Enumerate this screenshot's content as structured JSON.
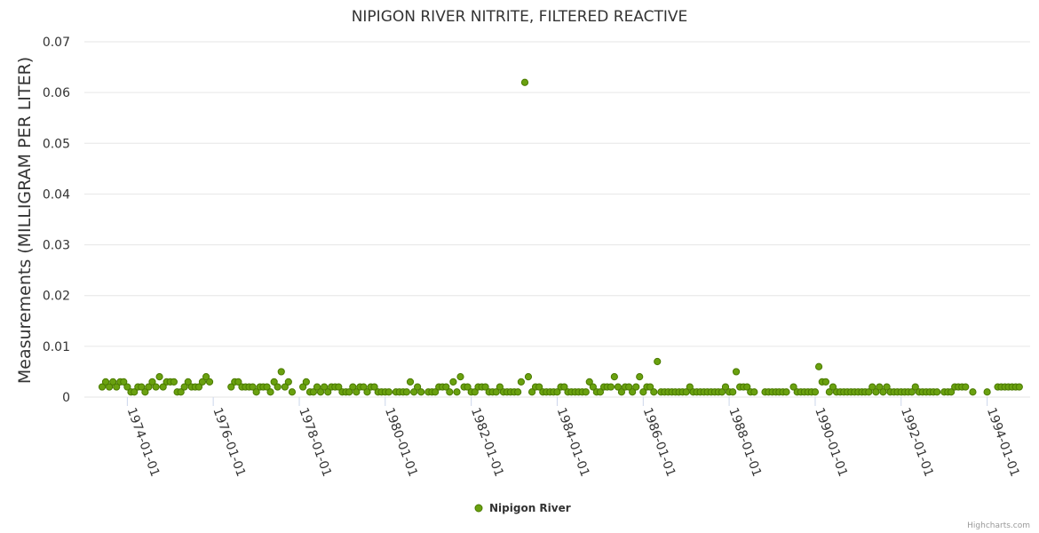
{
  "chart_data": {
    "type": "scatter",
    "title": "NIPIGON RIVER NITRITE, FILTERED REACTIVE",
    "ylabel": "Measurements (MILLIGRAM PER LITER)",
    "xlabel": "",
    "ylim": [
      0,
      0.07
    ],
    "yticks": [
      0,
      0.01,
      0.02,
      0.03,
      0.04,
      0.05,
      0.06,
      0.07
    ],
    "ytick_labels": [
      "0",
      "0.01",
      "0.02",
      "0.03",
      "0.04",
      "0.05",
      "0.06",
      "0.07"
    ],
    "xlim": [
      "1973-01-01",
      "1995-01-01"
    ],
    "xticks": [
      "1974-01-01",
      "1976-01-01",
      "1978-01-01",
      "1980-01-01",
      "1982-01-01",
      "1984-01-01",
      "1986-01-01",
      "1988-01-01",
      "1990-01-01",
      "1992-01-01",
      "1994-01-01"
    ],
    "grid": true,
    "legend_position": "bottom-center",
    "color": "#6aa10f",
    "marker_stroke": "#4a7a00",
    "series": [
      {
        "name": "Nipigon River",
        "points": [
          [
            "1973-06-01",
            0.002
          ],
          [
            "1973-07-01",
            0.003
          ],
          [
            "1973-08-01",
            0.002
          ],
          [
            "1973-09-01",
            0.003
          ],
          [
            "1973-10-01",
            0.002
          ],
          [
            "1973-11-01",
            0.003
          ],
          [
            "1973-12-01",
            0.003
          ],
          [
            "1974-01-01",
            0.002
          ],
          [
            "1974-02-01",
            0.001
          ],
          [
            "1974-03-01",
            0.001
          ],
          [
            "1974-04-01",
            0.002
          ],
          [
            "1974-05-01",
            0.002
          ],
          [
            "1974-06-01",
            0.001
          ],
          [
            "1974-07-01",
            0.002
          ],
          [
            "1974-08-01",
            0.003
          ],
          [
            "1974-09-01",
            0.002
          ],
          [
            "1974-10-01",
            0.004
          ],
          [
            "1974-11-01",
            0.002
          ],
          [
            "1974-12-01",
            0.003
          ],
          [
            "1975-01-01",
            0.003
          ],
          [
            "1975-02-01",
            0.003
          ],
          [
            "1975-03-01",
            0.001
          ],
          [
            "1975-04-01",
            0.001
          ],
          [
            "1975-05-01",
            0.002
          ],
          [
            "1975-06-01",
            0.003
          ],
          [
            "1975-07-01",
            0.002
          ],
          [
            "1975-08-01",
            0.002
          ],
          [
            "1975-09-01",
            0.002
          ],
          [
            "1975-10-01",
            0.003
          ],
          [
            "1975-11-01",
            0.004
          ],
          [
            "1975-12-01",
            0.003
          ],
          [
            "1976-06-01",
            0.002
          ],
          [
            "1976-07-01",
            0.003
          ],
          [
            "1976-08-01",
            0.003
          ],
          [
            "1976-09-01",
            0.002
          ],
          [
            "1976-10-01",
            0.002
          ],
          [
            "1976-11-01",
            0.002
          ],
          [
            "1976-12-01",
            0.002
          ],
          [
            "1977-01-01",
            0.001
          ],
          [
            "1977-02-01",
            0.002
          ],
          [
            "1977-03-01",
            0.002
          ],
          [
            "1977-04-01",
            0.002
          ],
          [
            "1977-05-01",
            0.001
          ],
          [
            "1977-06-01",
            0.003
          ],
          [
            "1977-07-01",
            0.002
          ],
          [
            "1977-08-01",
            0.005
          ],
          [
            "1977-09-01",
            0.002
          ],
          [
            "1977-10-01",
            0.003
          ],
          [
            "1977-11-01",
            0.001
          ],
          [
            "1978-02-01",
            0.002
          ],
          [
            "1978-03-01",
            0.003
          ],
          [
            "1978-04-01",
            0.001
          ],
          [
            "1978-05-01",
            0.001
          ],
          [
            "1978-06-01",
            0.002
          ],
          [
            "1978-07-01",
            0.001
          ],
          [
            "1978-08-01",
            0.002
          ],
          [
            "1978-09-01",
            0.001
          ],
          [
            "1978-10-01",
            0.002
          ],
          [
            "1978-11-01",
            0.002
          ],
          [
            "1978-12-01",
            0.002
          ],
          [
            "1979-01-01",
            0.001
          ],
          [
            "1979-02-01",
            0.001
          ],
          [
            "1979-03-01",
            0.001
          ],
          [
            "1979-04-01",
            0.002
          ],
          [
            "1979-05-01",
            0.001
          ],
          [
            "1979-06-01",
            0.002
          ],
          [
            "1979-07-01",
            0.002
          ],
          [
            "1979-08-01",
            0.001
          ],
          [
            "1979-09-01",
            0.002
          ],
          [
            "1979-10-01",
            0.002
          ],
          [
            "1979-11-01",
            0.001
          ],
          [
            "1979-12-01",
            0.001
          ],
          [
            "1980-01-01",
            0.001
          ],
          [
            "1980-02-01",
            0.001
          ],
          [
            "1980-04-01",
            0.001
          ],
          [
            "1980-05-01",
            0.001
          ],
          [
            "1980-06-01",
            0.001
          ],
          [
            "1980-07-01",
            0.001
          ],
          [
            "1980-08-01",
            0.003
          ],
          [
            "1980-09-01",
            0.001
          ],
          [
            "1980-10-01",
            0.002
          ],
          [
            "1980-11-01",
            0.001
          ],
          [
            "1981-01-01",
            0.001
          ],
          [
            "1981-02-01",
            0.001
          ],
          [
            "1981-03-01",
            0.001
          ],
          [
            "1981-04-01",
            0.002
          ],
          [
            "1981-05-01",
            0.002
          ],
          [
            "1981-06-01",
            0.002
          ],
          [
            "1981-07-01",
            0.001
          ],
          [
            "1981-08-01",
            0.003
          ],
          [
            "1981-09-01",
            0.001
          ],
          [
            "1981-10-01",
            0.004
          ],
          [
            "1981-11-01",
            0.002
          ],
          [
            "1981-12-01",
            0.002
          ],
          [
            "1982-01-01",
            0.001
          ],
          [
            "1982-02-01",
            0.001
          ],
          [
            "1982-03-01",
            0.002
          ],
          [
            "1982-04-01",
            0.002
          ],
          [
            "1982-05-01",
            0.002
          ],
          [
            "1982-06-01",
            0.001
          ],
          [
            "1982-07-01",
            0.001
          ],
          [
            "1982-08-01",
            0.001
          ],
          [
            "1982-09-01",
            0.002
          ],
          [
            "1982-10-01",
            0.001
          ],
          [
            "1982-11-01",
            0.001
          ],
          [
            "1982-12-01",
            0.001
          ],
          [
            "1983-01-01",
            0.001
          ],
          [
            "1983-02-01",
            0.001
          ],
          [
            "1983-03-01",
            0.003
          ],
          [
            "1983-04-01",
            0.062
          ],
          [
            "1983-05-01",
            0.004
          ],
          [
            "1983-06-01",
            0.001
          ],
          [
            "1983-07-01",
            0.002
          ],
          [
            "1983-08-01",
            0.002
          ],
          [
            "1983-09-01",
            0.001
          ],
          [
            "1983-10-01",
            0.001
          ],
          [
            "1983-11-01",
            0.001
          ],
          [
            "1983-12-01",
            0.001
          ],
          [
            "1984-01-01",
            0.001
          ],
          [
            "1984-02-01",
            0.002
          ],
          [
            "1984-03-01",
            0.002
          ],
          [
            "1984-04-01",
            0.001
          ],
          [
            "1984-05-01",
            0.001
          ],
          [
            "1984-06-01",
            0.001
          ],
          [
            "1984-07-01",
            0.001
          ],
          [
            "1984-08-01",
            0.001
          ],
          [
            "1984-09-01",
            0.001
          ],
          [
            "1984-10-01",
            0.003
          ],
          [
            "1984-11-01",
            0.002
          ],
          [
            "1984-12-01",
            0.001
          ],
          [
            "1985-01-01",
            0.001
          ],
          [
            "1985-02-01",
            0.002
          ],
          [
            "1985-03-01",
            0.002
          ],
          [
            "1985-04-01",
            0.002
          ],
          [
            "1985-05-01",
            0.004
          ],
          [
            "1985-06-01",
            0.002
          ],
          [
            "1985-07-01",
            0.001
          ],
          [
            "1985-08-01",
            0.002
          ],
          [
            "1985-09-01",
            0.002
          ],
          [
            "1985-10-01",
            0.001
          ],
          [
            "1985-11-01",
            0.002
          ],
          [
            "1985-12-01",
            0.004
          ],
          [
            "1986-01-01",
            0.001
          ],
          [
            "1986-02-01",
            0.002
          ],
          [
            "1986-03-01",
            0.002
          ],
          [
            "1986-04-01",
            0.001
          ],
          [
            "1986-05-01",
            0.007
          ],
          [
            "1986-06-01",
            0.001
          ],
          [
            "1986-07-01",
            0.001
          ],
          [
            "1986-08-01",
            0.001
          ],
          [
            "1986-09-01",
            0.001
          ],
          [
            "1986-10-01",
            0.001
          ],
          [
            "1986-11-01",
            0.001
          ],
          [
            "1986-12-01",
            0.001
          ],
          [
            "1987-01-01",
            0.001
          ],
          [
            "1987-02-01",
            0.002
          ],
          [
            "1987-03-01",
            0.001
          ],
          [
            "1987-04-01",
            0.001
          ],
          [
            "1987-05-01",
            0.001
          ],
          [
            "1987-06-01",
            0.001
          ],
          [
            "1987-07-01",
            0.001
          ],
          [
            "1987-08-01",
            0.001
          ],
          [
            "1987-09-01",
            0.001
          ],
          [
            "1987-10-01",
            0.001
          ],
          [
            "1987-11-01",
            0.001
          ],
          [
            "1987-12-01",
            0.002
          ],
          [
            "1988-01-01",
            0.001
          ],
          [
            "1988-02-01",
            0.001
          ],
          [
            "1988-03-01",
            0.005
          ],
          [
            "1988-04-01",
            0.002
          ],
          [
            "1988-05-01",
            0.002
          ],
          [
            "1988-06-01",
            0.002
          ],
          [
            "1988-07-01",
            0.001
          ],
          [
            "1988-08-01",
            0.001
          ],
          [
            "1988-11-01",
            0.001
          ],
          [
            "1988-12-01",
            0.001
          ],
          [
            "1989-01-01",
            0.001
          ],
          [
            "1989-02-01",
            0.001
          ],
          [
            "1989-03-01",
            0.001
          ],
          [
            "1989-04-01",
            0.001
          ],
          [
            "1989-05-01",
            0.001
          ],
          [
            "1989-07-01",
            0.002
          ],
          [
            "1989-08-01",
            0.001
          ],
          [
            "1989-09-01",
            0.001
          ],
          [
            "1989-10-01",
            0.001
          ],
          [
            "1989-11-01",
            0.001
          ],
          [
            "1989-12-01",
            0.001
          ],
          [
            "1990-01-01",
            0.001
          ],
          [
            "1990-02-01",
            0.006
          ],
          [
            "1990-03-01",
            0.003
          ],
          [
            "1990-04-01",
            0.003
          ],
          [
            "1990-05-01",
            0.001
          ],
          [
            "1990-06-01",
            0.002
          ],
          [
            "1990-07-01",
            0.001
          ],
          [
            "1990-08-01",
            0.001
          ],
          [
            "1990-09-01",
            0.001
          ],
          [
            "1990-10-01",
            0.001
          ],
          [
            "1990-11-01",
            0.001
          ],
          [
            "1990-12-01",
            0.001
          ],
          [
            "1991-01-01",
            0.001
          ],
          [
            "1991-02-01",
            0.001
          ],
          [
            "1991-03-01",
            0.001
          ],
          [
            "1991-04-01",
            0.001
          ],
          [
            "1991-05-01",
            0.002
          ],
          [
            "1991-06-01",
            0.001
          ],
          [
            "1991-07-01",
            0.002
          ],
          [
            "1991-08-01",
            0.001
          ],
          [
            "1991-09-01",
            0.002
          ],
          [
            "1991-10-01",
            0.001
          ],
          [
            "1991-11-01",
            0.001
          ],
          [
            "1991-12-01",
            0.001
          ],
          [
            "1992-01-01",
            0.001
          ],
          [
            "1992-02-01",
            0.001
          ],
          [
            "1992-03-01",
            0.001
          ],
          [
            "1992-04-01",
            0.001
          ],
          [
            "1992-05-01",
            0.002
          ],
          [
            "1992-06-01",
            0.001
          ],
          [
            "1992-07-01",
            0.001
          ],
          [
            "1992-08-01",
            0.001
          ],
          [
            "1992-09-01",
            0.001
          ],
          [
            "1992-10-01",
            0.001
          ],
          [
            "1992-11-01",
            0.001
          ],
          [
            "1993-01-01",
            0.001
          ],
          [
            "1993-02-01",
            0.001
          ],
          [
            "1993-03-01",
            0.001
          ],
          [
            "1993-04-01",
            0.002
          ],
          [
            "1993-05-01",
            0.002
          ],
          [
            "1993-06-01",
            0.002
          ],
          [
            "1993-07-01",
            0.002
          ],
          [
            "1993-09-01",
            0.001
          ],
          [
            "1994-01-01",
            0.001
          ],
          [
            "1994-04-01",
            0.002
          ],
          [
            "1994-05-01",
            0.002
          ],
          [
            "1994-06-01",
            0.002
          ],
          [
            "1994-07-01",
            0.002
          ],
          [
            "1994-08-01",
            0.002
          ],
          [
            "1994-09-01",
            0.002
          ],
          [
            "1994-10-01",
            0.002
          ]
        ]
      }
    ]
  },
  "credits": "Highcharts.com"
}
